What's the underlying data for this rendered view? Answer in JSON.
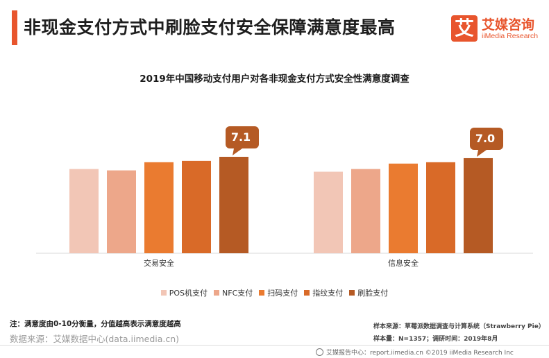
{
  "header": {
    "title": "非现金支付方式中刷脸支付安全保障满意度最高",
    "logo_mark": "艾",
    "logo_cn": "艾媒咨询",
    "logo_en": "iiMedia Research",
    "accent_color": "#e8552d"
  },
  "chart_data": {
    "type": "bar",
    "title": "2019年中国移动支付用户对各非现金支付方式安全性满意度调查",
    "categories": [
      "交易安全",
      "信息安全"
    ],
    "series": [
      {
        "name": "POS机支付",
        "color": "#f2c6b6",
        "values": [
          6.2,
          6.0
        ]
      },
      {
        "name": "NFC支付",
        "color": "#eda78a",
        "values": [
          6.1,
          6.2
        ]
      },
      {
        "name": "扫码支付",
        "color": "#ea7b30",
        "values": [
          6.7,
          6.6
        ]
      },
      {
        "name": "指纹支付",
        "color": "#d96a28",
        "values": [
          6.8,
          6.7
        ]
      },
      {
        "name": "刷脸支付",
        "color": "#b55a24",
        "values": [
          7.1,
          7.0
        ]
      }
    ],
    "callouts": [
      {
        "category": "交易安全",
        "series": "刷脸支付",
        "label": "7.1"
      },
      {
        "category": "信息安全",
        "series": "刷脸支付",
        "label": "7.0"
      }
    ],
    "ylim": [
      0,
      10
    ],
    "grid": false,
    "legend_position": "bottom"
  },
  "notes": {
    "note": "注：满意度由0-10分衡量，分值越高表示满意度越高",
    "data_source": "数据来源：艾媒数据中心(data.iimedia.cn)",
    "sample_source": "样本来源：草莓派数据调查与计算系统（Strawberry Pie）",
    "sample_size": "样本量：N=1357；调研时间：2019年8月"
  },
  "footer": {
    "text": "艾媒报告中心：report.iimedia.cn   ©2019   iiMedia Research  Inc"
  }
}
